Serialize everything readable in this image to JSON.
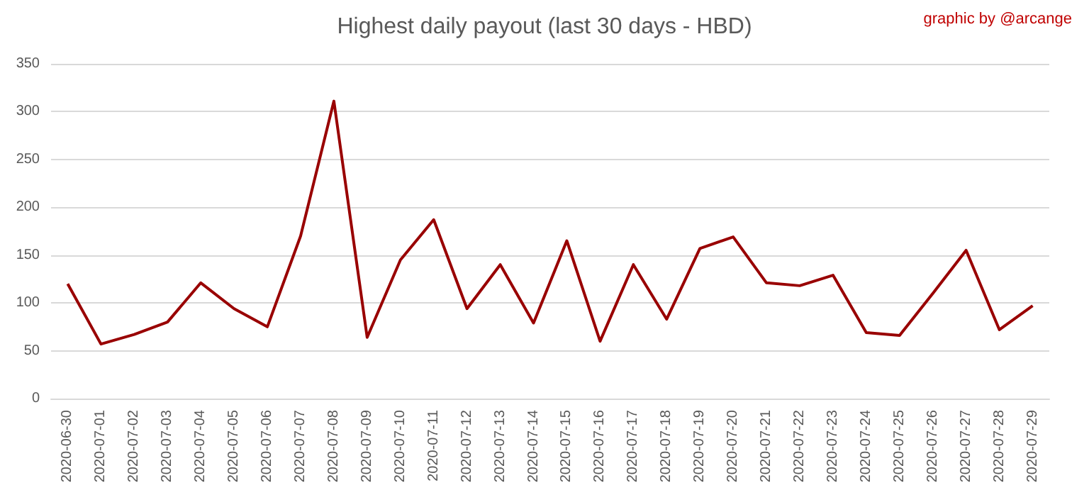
{
  "chart_data": {
    "type": "line",
    "title": "Highest daily payout (last 30 days - HBD)",
    "annotations": [
      "graphic by @arcange"
    ],
    "categories": [
      "2020-06-30",
      "2020-07-01",
      "2020-07-02",
      "2020-07-03",
      "2020-07-04",
      "2020-07-05",
      "2020-07-06",
      "2020-07-07",
      "2020-07-08",
      "2020-07-09",
      "2020-07-10",
      "2020-07-11",
      "2020-07-12",
      "2020-07-13",
      "2020-07-14",
      "2020-07-15",
      "2020-07-16",
      "2020-07-17",
      "2020-07-18",
      "2020-07-19",
      "2020-07-20",
      "2020-07-21",
      "2020-07-22",
      "2020-07-23",
      "2020-07-24",
      "2020-07-25",
      "2020-07-26",
      "2020-07-27",
      "2020-07-28",
      "2020-07-29"
    ],
    "values": [
      120,
      57,
      67,
      80,
      121,
      94,
      75,
      170,
      311,
      64,
      145,
      187,
      94,
      140,
      79,
      165,
      60,
      140,
      83,
      157,
      169,
      121,
      118,
      129,
      69,
      66,
      110,
      155,
      72,
      97
    ],
    "color": "#990000",
    "ylim": [
      0,
      350
    ],
    "yticks": [
      0,
      50,
      100,
      150,
      200,
      250,
      300,
      350
    ],
    "grid": "y",
    "marker": "none",
    "line_style": "solid"
  }
}
